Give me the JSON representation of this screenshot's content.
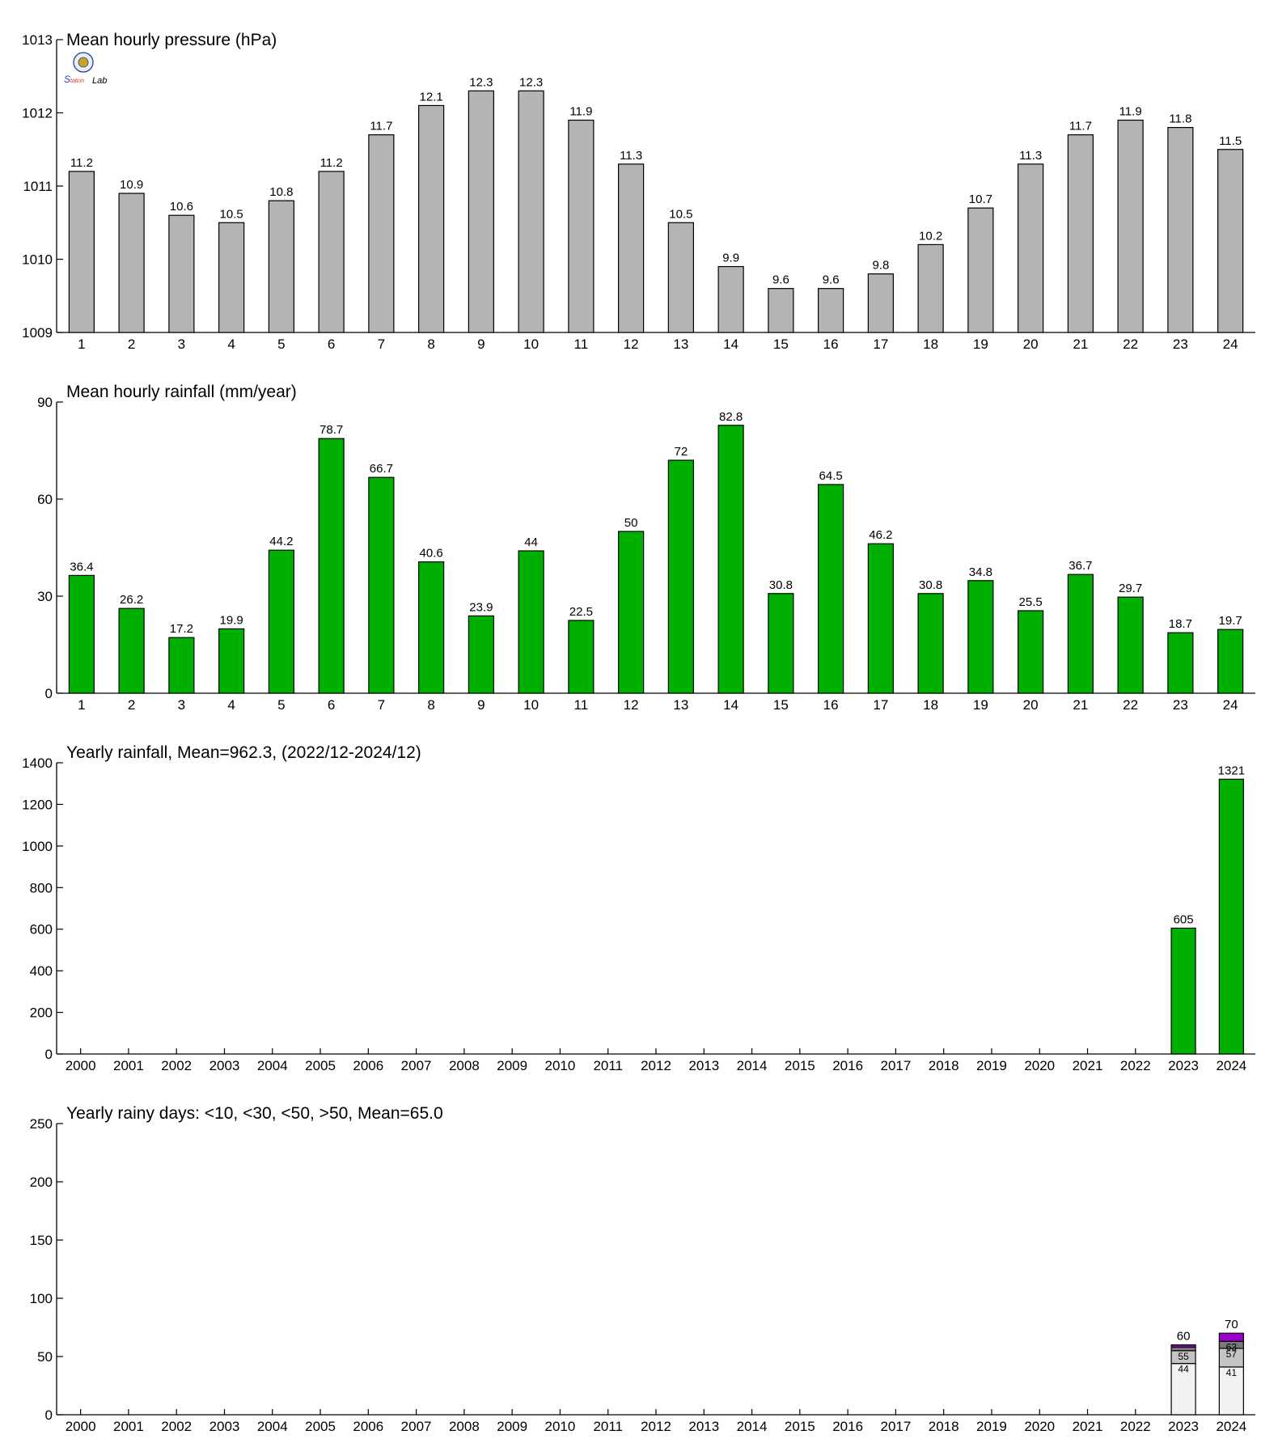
{
  "logo": {
    "name": "station-lab-logo",
    "text": "Lab"
  },
  "chart_data": [
    {
      "type": "bar",
      "title": "Mean hourly pressure (hPa)",
      "categories": [
        "1",
        "2",
        "3",
        "4",
        "5",
        "6",
        "7",
        "8",
        "9",
        "10",
        "11",
        "12",
        "13",
        "14",
        "15",
        "16",
        "17",
        "18",
        "19",
        "20",
        "21",
        "22",
        "23",
        "24"
      ],
      "values": [
        1011.2,
        1010.9,
        1010.6,
        1010.5,
        1010.8,
        1011.2,
        1011.7,
        1012.1,
        1012.3,
        1012.3,
        1011.9,
        1011.3,
        1010.5,
        1009.9,
        1009.6,
        1009.6,
        1009.8,
        1010.2,
        1010.7,
        1011.3,
        1011.7,
        1011.9,
        1011.8,
        1011.5
      ],
      "labels": [
        "11.2",
        "10.9",
        "10.6",
        "10.5",
        "10.8",
        "11.2",
        "11.7",
        "12.1",
        "12.3",
        "12.3",
        "11.9",
        "11.3",
        "10.5",
        "9.9",
        "9.6",
        "9.6",
        "9.8",
        "10.2",
        "10.7",
        "11.3",
        "11.7",
        "11.9",
        "11.8",
        "11.5"
      ],
      "ylim": [
        1009,
        1013
      ],
      "yticks": [
        1009,
        1010,
        1011,
        1012,
        1013
      ],
      "color": "#b4b4b4"
    },
    {
      "type": "bar",
      "title": "Mean hourly rainfall (mm/year)",
      "categories": [
        "1",
        "2",
        "3",
        "4",
        "5",
        "6",
        "7",
        "8",
        "9",
        "10",
        "11",
        "12",
        "13",
        "14",
        "15",
        "16",
        "17",
        "18",
        "19",
        "20",
        "21",
        "22",
        "23",
        "24"
      ],
      "values": [
        36.4,
        26.2,
        17.2,
        19.9,
        44.2,
        78.7,
        66.7,
        40.6,
        23.9,
        44,
        22.5,
        50,
        72,
        82.8,
        30.8,
        64.5,
        46.2,
        30.8,
        34.8,
        25.5,
        36.7,
        29.7,
        18.7,
        19.7
      ],
      "labels": [
        "36.4",
        "26.2",
        "17.2",
        "19.9",
        "44.2",
        "78.7",
        "66.7",
        "40.6",
        "23.9",
        "44",
        "22.5",
        "50",
        "72",
        "82.8",
        "30.8",
        "64.5",
        "46.2",
        "30.8",
        "34.8",
        "25.5",
        "36.7",
        "29.7",
        "18.7",
        "19.7"
      ],
      "ylim": [
        0,
        90
      ],
      "yticks": [
        0,
        30,
        60,
        90
      ],
      "color": "#00b000"
    },
    {
      "type": "bar",
      "title": "Yearly rainfall, Mean=962.3, (2022/12-2024/12)",
      "categories": [
        "2000",
        "2001",
        "2002",
        "2003",
        "2004",
        "2005",
        "2006",
        "2007",
        "2008",
        "2009",
        "2010",
        "2011",
        "2012",
        "2013",
        "2014",
        "2015",
        "2016",
        "2017",
        "2018",
        "2019",
        "2020",
        "2021",
        "2022",
        "2023",
        "2024"
      ],
      "values": [
        null,
        null,
        null,
        null,
        null,
        null,
        null,
        null,
        null,
        null,
        null,
        null,
        null,
        null,
        null,
        null,
        null,
        null,
        null,
        null,
        null,
        null,
        null,
        605,
        1321
      ],
      "labels": [
        "",
        "",
        "",
        "",
        "",
        "",
        "",
        "",
        "",
        "",
        "",
        "",
        "",
        "",
        "",
        "",
        "",
        "",
        "",
        "",
        "",
        "",
        "",
        "605",
        "1321"
      ],
      "ylim": [
        0,
        1400
      ],
      "yticks": [
        0,
        200,
        400,
        600,
        800,
        1000,
        1200,
        1400
      ],
      "color": "#00b000"
    },
    {
      "type": "bar",
      "stacked": true,
      "title": "Yearly rainy days: <10, <30, <50, >50, Mean=65.0",
      "categories": [
        "2000",
        "2001",
        "2002",
        "2003",
        "2004",
        "2005",
        "2006",
        "2007",
        "2008",
        "2009",
        "2010",
        "2011",
        "2012",
        "2013",
        "2014",
        "2015",
        "2016",
        "2017",
        "2018",
        "2019",
        "2020",
        "2021",
        "2022",
        "2023",
        "2024"
      ],
      "stack_colors": [
        "#f2f2f2",
        "#c4c4c4",
        "#7a7a7a",
        "#9b00cc"
      ],
      "stacks": [
        {
          "category": "2023",
          "cumulative": [
            44,
            55,
            58,
            60
          ],
          "inner_labels": [
            "44",
            "55"
          ],
          "total_label": "60"
        },
        {
          "category": "2024",
          "cumulative": [
            41,
            57,
            63,
            70
          ],
          "inner_labels": [
            "41",
            "57",
            "63"
          ],
          "total_label": "70"
        }
      ],
      "ylim": [
        0,
        250
      ],
      "yticks": [
        0,
        50,
        100,
        150,
        200,
        250
      ]
    }
  ]
}
